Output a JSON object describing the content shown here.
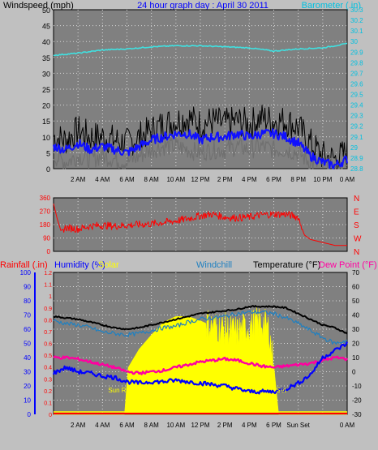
{
  "header": {
    "left": "Windspeed (mph)",
    "center": "24 hour graph day : April 30 2011",
    "right": "Barometer (.in)"
  },
  "colors": {
    "background": "#c0c0c0",
    "plot": "#808080",
    "grid": "#d8d8d8",
    "wind_gust": "#000000",
    "wind_avg": "#1010ff",
    "wind_low": "#707070",
    "barometer": "#40e0e0",
    "direction": "#ff0000",
    "rain": "#ff0000",
    "humidity": "#0000ff",
    "solar": "#ffff00",
    "windchill": "#2080c0",
    "temperature": "#000000",
    "dewpoint": "#ff00a0"
  },
  "x_ticks": [
    "2 AM",
    "4 AM",
    "6 AM",
    "8 AM",
    "10 AM",
    "12 PM",
    "2 PM",
    "4 PM",
    "6 PM",
    "8 PM",
    "10 PM",
    "0 AM"
  ],
  "x_ticks_bottom": [
    "2 AM",
    "4 AM",
    "6 AM",
    "8 AM",
    "10 AM",
    "12 PM",
    "2 PM",
    "4 PM",
    "6 PM",
    "Sun Set",
    "0 AM"
  ],
  "chart_data": [
    {
      "type": "line",
      "title": "24 hour graph day : April 30 2011",
      "ylabel": "Windspeed (mph)",
      "y2label": "Barometer (.in)",
      "ylim": [
        0,
        50
      ],
      "y_ticks": [
        "0",
        "5",
        "10",
        "15",
        "20",
        "25",
        "30",
        "35",
        "40",
        "45",
        "50"
      ],
      "y2lim": [
        28.8,
        30.3
      ],
      "y2_ticks": [
        "28.8",
        "28.9",
        "29",
        "29.1",
        "29.2",
        "29.3",
        "29.4",
        "29.5",
        "29.6",
        "29.7",
        "29.8",
        "29.9",
        "30",
        "30.1",
        "30.2",
        "30.3"
      ],
      "xlim": [
        0,
        24
      ],
      "series": [
        {
          "role": "barometer",
          "axis": "right",
          "x": [
            0,
            2,
            4,
            6,
            8,
            10,
            12,
            14,
            16,
            18,
            20,
            22,
            24
          ],
          "values": [
            29.87,
            29.89,
            29.92,
            29.93,
            29.95,
            29.96,
            29.96,
            29.95,
            29.94,
            29.91,
            29.93,
            29.94,
            29.98
          ]
        },
        {
          "role": "wind_gust",
          "axis": "left",
          "x": [
            0,
            1,
            2,
            3,
            4,
            5,
            6,
            7,
            8,
            9,
            10,
            11,
            12,
            13,
            14,
            15,
            16,
            17,
            18,
            19,
            20,
            21,
            22,
            23,
            24
          ],
          "values": [
            10,
            9,
            12,
            10,
            10,
            9,
            8,
            10,
            12,
            14,
            15,
            16,
            14,
            15,
            14,
            15,
            14,
            16,
            15,
            15,
            13,
            8,
            4,
            3,
            5
          ]
        },
        {
          "role": "wind_avg",
          "axis": "left",
          "x": [
            0,
            1,
            2,
            3,
            4,
            5,
            6,
            7,
            8,
            9,
            10,
            11,
            12,
            13,
            14,
            15,
            16,
            17,
            18,
            19,
            20,
            21,
            22,
            23,
            24
          ],
          "values": [
            7,
            6,
            8,
            6,
            7,
            6,
            5,
            7,
            9,
            10,
            11,
            11,
            9,
            10,
            10,
            11,
            10,
            11,
            11,
            10,
            8,
            4,
            2,
            1,
            3
          ]
        },
        {
          "role": "wind_low",
          "axis": "left",
          "x": [
            0,
            1,
            2,
            3,
            4,
            5,
            6,
            7,
            8,
            9,
            10,
            11,
            12,
            13,
            14,
            15,
            16,
            17,
            18,
            19,
            20,
            21,
            22,
            23,
            24
          ],
          "values": [
            4,
            2,
            4,
            3,
            4,
            3,
            2,
            4,
            6,
            7,
            7,
            6,
            5,
            6,
            6,
            7,
            6,
            7,
            6,
            6,
            5,
            2,
            1,
            0,
            1
          ]
        }
      ]
    },
    {
      "type": "line",
      "ylabel": "Wind direction",
      "ylim": [
        0,
        360
      ],
      "y_ticks": [
        "0",
        "90",
        "180",
        "270",
        "360"
      ],
      "y2_ticks": [
        "N",
        "W",
        "S",
        "E",
        "N"
      ],
      "xlim": [
        0,
        24
      ],
      "series": [
        {
          "role": "direction",
          "x": [
            0,
            0.3,
            0.6,
            1,
            2,
            3,
            4,
            5,
            6,
            7,
            8,
            9,
            10,
            11,
            12,
            13,
            14,
            15,
            16,
            17,
            18,
            19,
            20,
            20.5,
            21,
            22,
            23,
            24
          ],
          "values": [
            320,
            220,
            140,
            160,
            150,
            170,
            175,
            170,
            175,
            180,
            185,
            195,
            205,
            220,
            240,
            250,
            230,
            225,
            230,
            245,
            250,
            250,
            230,
            110,
            80,
            60,
            40,
            40
          ]
        }
      ]
    },
    {
      "type": "line",
      "labels": {
        "rainfall": "Rainfall (.in)",
        "humidity": "Humidity (%)",
        "solar": "Solar",
        "windchill": "Windchill",
        "temperature": "Temperature (°F)",
        "dewpoint": "Dew Point (°F)"
      },
      "annotations": {
        "sunrise": "Sun R",
        "sunset": "Set"
      },
      "ylim": [
        0,
        1.2
      ],
      "y_ticks": [
        "0",
        "0.1",
        "0.2",
        "0.3",
        "0.4",
        "0.5",
        "0.6",
        "0.7",
        "0.8",
        "0.9",
        "1",
        "1.1",
        "1.2"
      ],
      "humidity_lim": [
        0,
        100
      ],
      "humidity_ticks": [
        "0",
        "10",
        "20",
        "30",
        "40",
        "50",
        "60",
        "70",
        "80",
        "90",
        "100"
      ],
      "y2lim": [
        -30,
        70
      ],
      "y2_ticks": [
        "-30",
        "-20",
        "-10",
        "0",
        "10",
        "20",
        "30",
        "40",
        "50",
        "60",
        "70"
      ],
      "xlim": [
        0,
        24
      ],
      "series": [
        {
          "role": "temperature",
          "axis": "right",
          "x": [
            0,
            1,
            2,
            3,
            4,
            5,
            6,
            7,
            8,
            9,
            10,
            11,
            12,
            13,
            14,
            15,
            16,
            17,
            18,
            19,
            20,
            21,
            22,
            23,
            24
          ],
          "values": [
            39,
            38,
            37,
            35,
            33,
            31,
            30,
            31,
            33,
            35,
            37,
            39,
            41,
            42,
            43,
            44,
            46,
            46,
            46,
            45,
            41,
            37,
            33,
            31,
            27
          ]
        },
        {
          "role": "windchill",
          "axis": "right",
          "x": [
            0,
            1,
            2,
            3,
            4,
            5,
            6,
            7,
            8,
            9,
            10,
            11,
            12,
            13,
            14,
            15,
            16,
            17,
            18,
            19,
            20,
            21,
            22,
            23,
            24
          ],
          "values": [
            36,
            34,
            33,
            31,
            28,
            27,
            26,
            27,
            29,
            31,
            32,
            35,
            37,
            38,
            39,
            41,
            42,
            42,
            41,
            38,
            34,
            29,
            24,
            20,
            22
          ]
        },
        {
          "role": "dewpoint",
          "axis": "right",
          "x": [
            0,
            1,
            2,
            3,
            4,
            5,
            6,
            7,
            8,
            9,
            10,
            11,
            12,
            13,
            14,
            15,
            16,
            17,
            18,
            19,
            20,
            21,
            22,
            23,
            24
          ],
          "values": [
            10,
            10,
            9,
            7,
            5,
            3,
            0,
            -1,
            0,
            1,
            3,
            5,
            7,
            8,
            9,
            8,
            6,
            4,
            3,
            4,
            5,
            6,
            8,
            10,
            9
          ]
        },
        {
          "role": "humidity",
          "axis": "humidity",
          "x": [
            0,
            1,
            2,
            3,
            4,
            5,
            6,
            7,
            8,
            9,
            10,
            11,
            12,
            13,
            14,
            15,
            16,
            17,
            18,
            19,
            20,
            21,
            22,
            23,
            24
          ],
          "values": [
            29,
            33,
            30,
            29,
            27,
            26,
            23,
            22,
            23,
            23,
            24,
            23,
            22,
            21,
            20,
            18,
            16,
            16,
            16,
            18,
            22,
            28,
            40,
            45,
            50
          ]
        },
        {
          "role": "solar",
          "axis": "normalized",
          "x": [
            0,
            5.8,
            6.1,
            7,
            8,
            9,
            10,
            11,
            12,
            13,
            14,
            15,
            16,
            17,
            17.6,
            18,
            18.4,
            24
          ],
          "values": [
            0,
            0,
            0.33,
            0.46,
            0.56,
            0.65,
            0.69,
            0.69,
            0.66,
            0.62,
            0.6,
            0.58,
            0.62,
            0.65,
            0.6,
            0.35,
            0,
            0
          ]
        },
        {
          "role": "rain",
          "axis": "left",
          "x": [
            0,
            24
          ],
          "values": [
            0,
            0
          ]
        }
      ]
    }
  ]
}
